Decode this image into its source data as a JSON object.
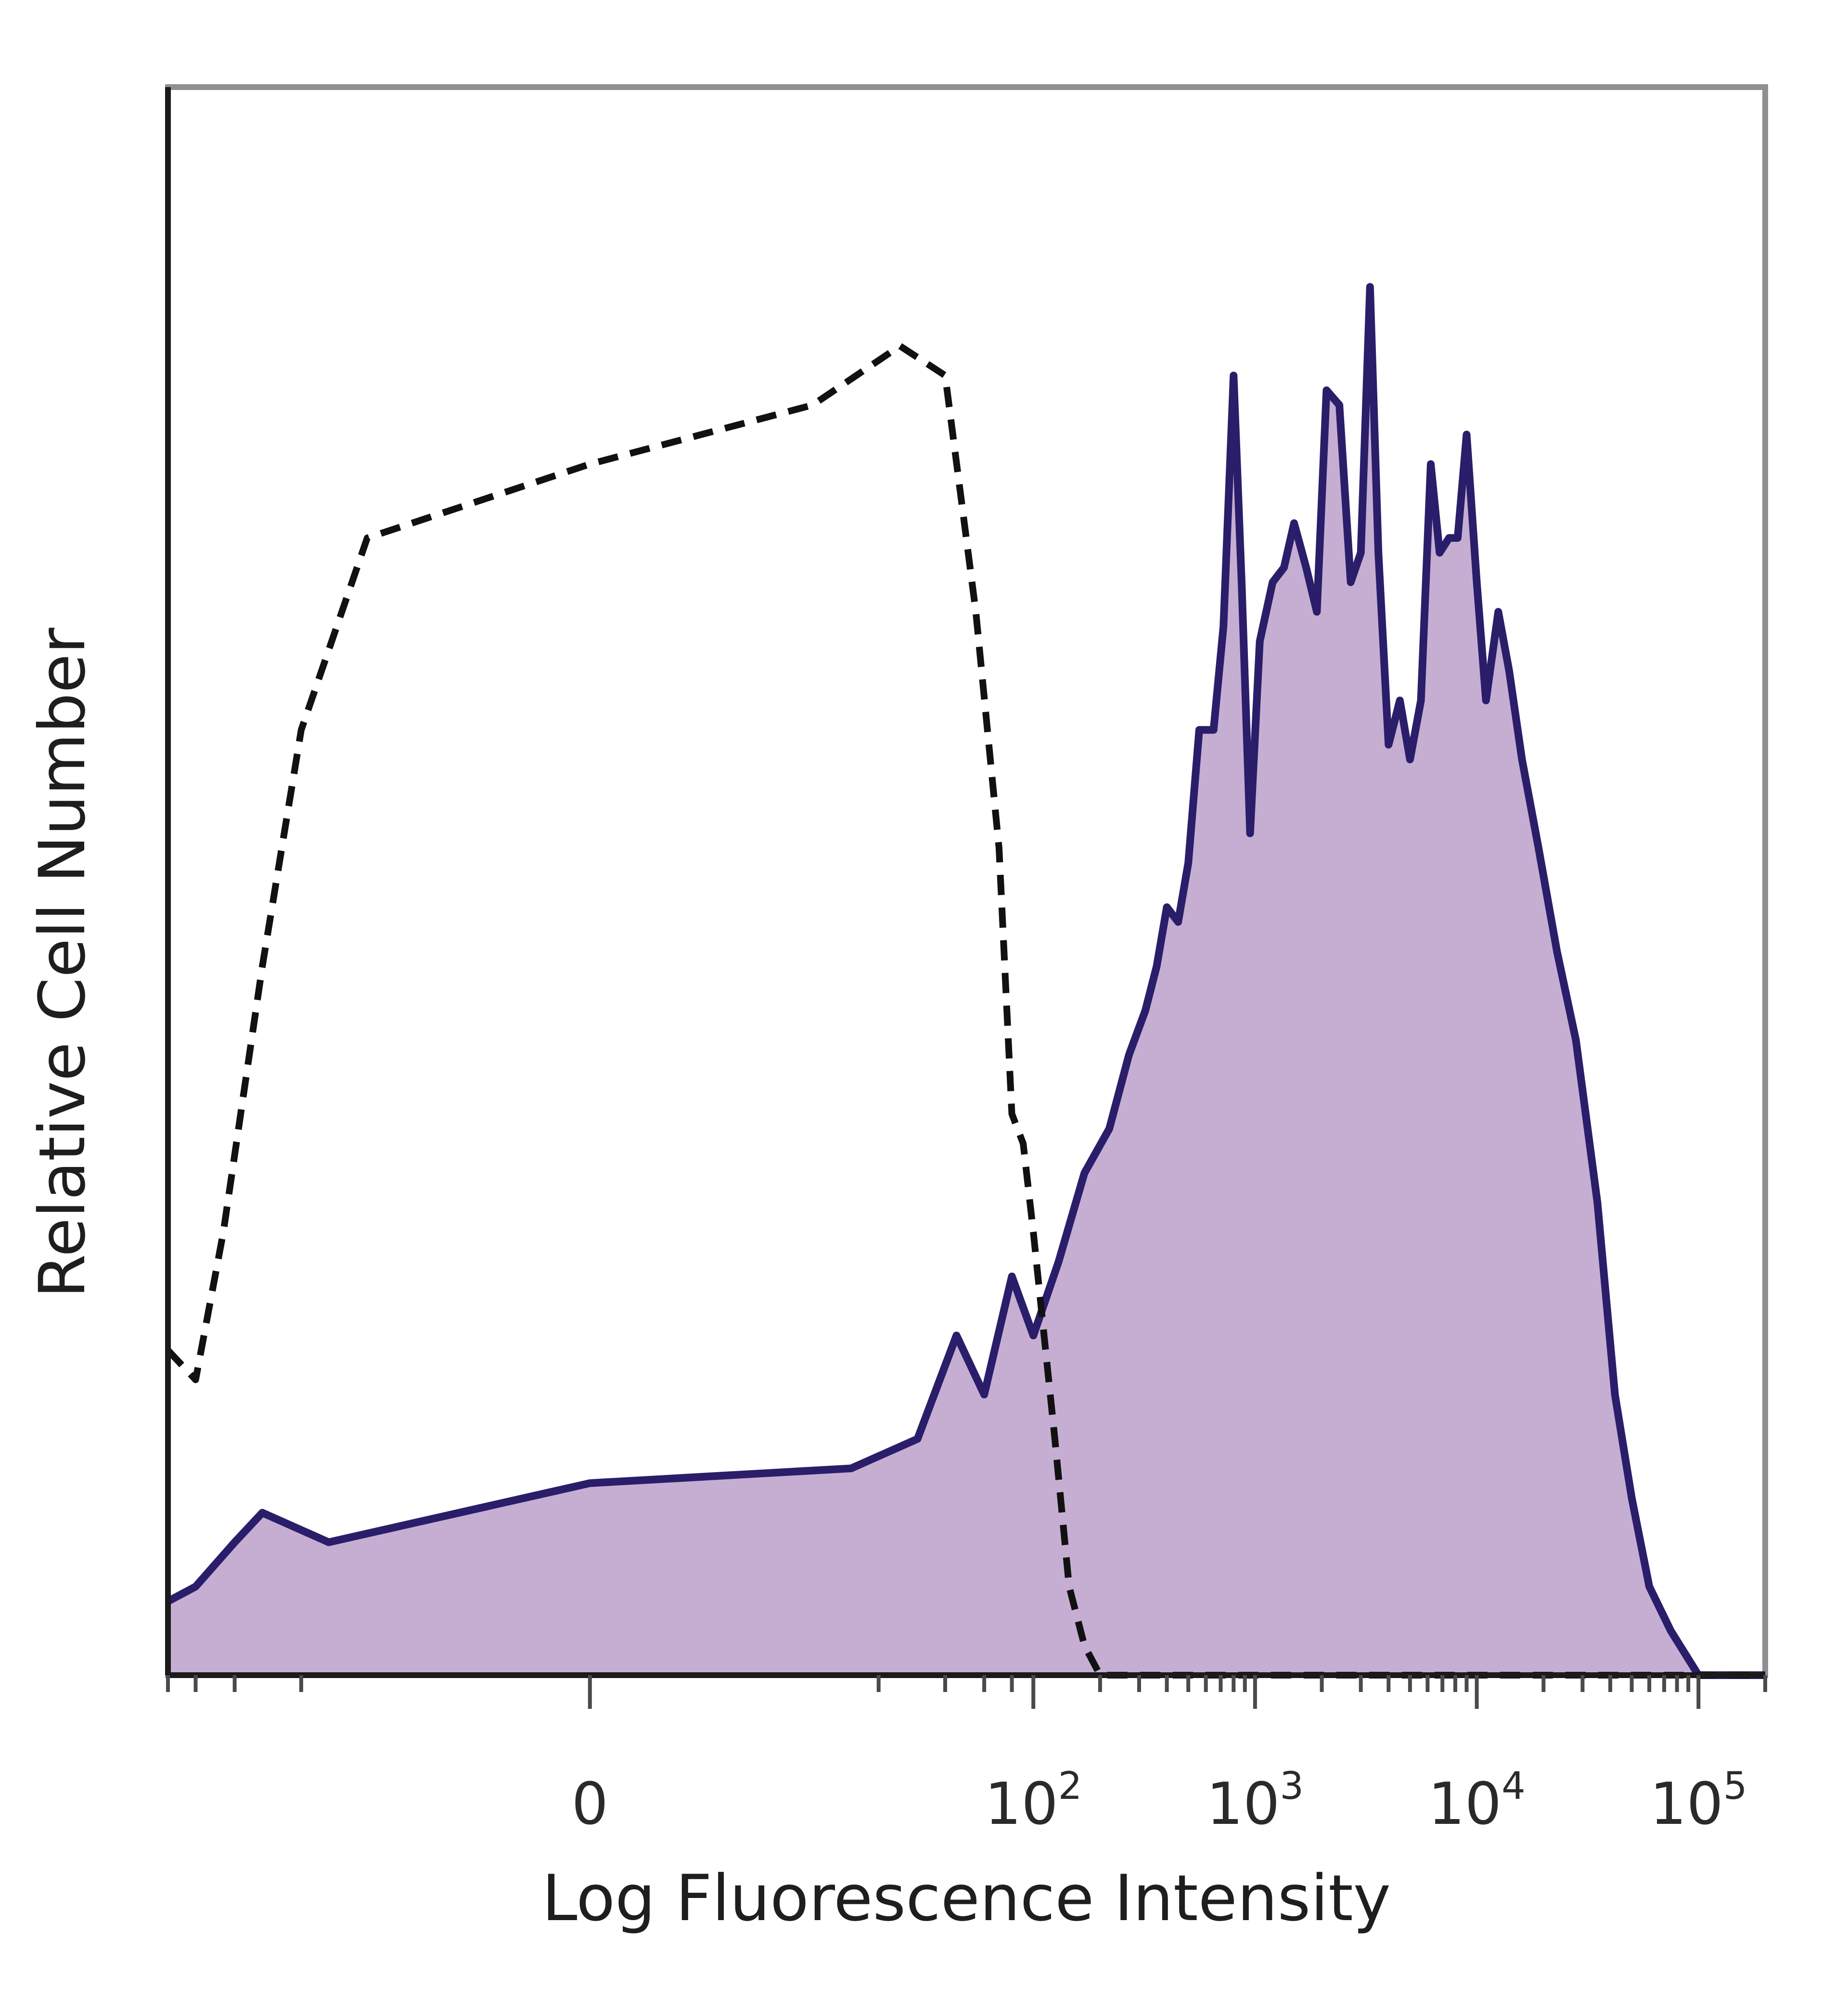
{
  "chart_data": {
    "type": "area",
    "title": "",
    "xlabel": "Log Fluorescence Intensity",
    "ylabel": "Relative Cell Number",
    "x_scale": "biexponential",
    "xlim": [
      -80,
      200000
    ],
    "ylim": [
      0,
      100
    ],
    "grid": false,
    "legend": "none",
    "x_ticks": [
      {
        "base": "0",
        "exp": ""
      },
      {
        "base": "10",
        "exp": "2"
      },
      {
        "base": "10",
        "exp": "3"
      },
      {
        "base": "10",
        "exp": "4"
      },
      {
        "base": "10",
        "exp": "5"
      }
    ],
    "series": [
      {
        "style": "filled",
        "fill": "#c6aed3",
        "stroke": "#2a1e6a",
        "points": [
          [
            -80,
            5
          ],
          [
            -60,
            6
          ],
          [
            -40,
            9
          ],
          [
            -30,
            11
          ],
          [
            -15,
            9
          ],
          [
            0,
            13
          ],
          [
            15,
            14
          ],
          [
            30,
            16
          ],
          [
            45,
            23
          ],
          [
            60,
            19
          ],
          [
            80,
            27
          ],
          [
            100,
            23
          ],
          [
            130,
            28
          ],
          [
            170,
            34
          ],
          [
            220,
            37
          ],
          [
            270,
            42
          ],
          [
            320,
            45
          ],
          [
            360,
            48
          ],
          [
            400,
            52
          ],
          [
            450,
            51
          ],
          [
            500,
            55
          ],
          [
            560,
            64
          ],
          [
            650,
            64
          ],
          [
            720,
            71
          ],
          [
            800,
            88
          ],
          [
            870,
            74
          ],
          [
            950,
            57
          ],
          [
            1050,
            70
          ],
          [
            1200,
            74
          ],
          [
            1350,
            75
          ],
          [
            1500,
            78
          ],
          [
            1700,
            75
          ],
          [
            1900,
            72
          ],
          [
            2100,
            87
          ],
          [
            2400,
            86
          ],
          [
            2700,
            74
          ],
          [
            3000,
            76
          ],
          [
            3300,
            94
          ],
          [
            3600,
            76
          ],
          [
            4000,
            63
          ],
          [
            4500,
            66
          ],
          [
            5000,
            62
          ],
          [
            5600,
            66
          ],
          [
            6200,
            82
          ],
          [
            6800,
            76
          ],
          [
            7500,
            77
          ],
          [
            8200,
            77
          ],
          [
            9000,
            84
          ],
          [
            10000,
            74
          ],
          [
            11000,
            66
          ],
          [
            12500,
            72
          ],
          [
            14000,
            68
          ],
          [
            16000,
            62
          ],
          [
            19000,
            56
          ],
          [
            23000,
            49
          ],
          [
            28000,
            43
          ],
          [
            35000,
            32
          ],
          [
            42000,
            19
          ],
          [
            50000,
            12
          ],
          [
            60000,
            6
          ],
          [
            75000,
            3
          ],
          [
            100000,
            0
          ],
          [
            200000,
            0
          ]
        ]
      },
      {
        "style": "dashed",
        "stroke": "#111111",
        "points": [
          [
            -80,
            22
          ],
          [
            -60,
            20
          ],
          [
            -45,
            30
          ],
          [
            -30,
            48
          ],
          [
            -20,
            64
          ],
          [
            -10,
            77
          ],
          [
            0,
            82
          ],
          [
            10,
            86
          ],
          [
            25,
            90
          ],
          [
            40,
            88
          ],
          [
            55,
            72
          ],
          [
            70,
            56
          ],
          [
            80,
            38
          ],
          [
            90,
            36
          ],
          [
            100,
            30
          ],
          [
            110,
            24
          ],
          [
            125,
            16
          ],
          [
            145,
            6
          ],
          [
            170,
            2
          ],
          [
            200,
            0
          ],
          [
            300,
            0
          ],
          [
            1000,
            0
          ],
          [
            10000,
            0
          ],
          [
            200000,
            0
          ]
        ]
      }
    ]
  }
}
